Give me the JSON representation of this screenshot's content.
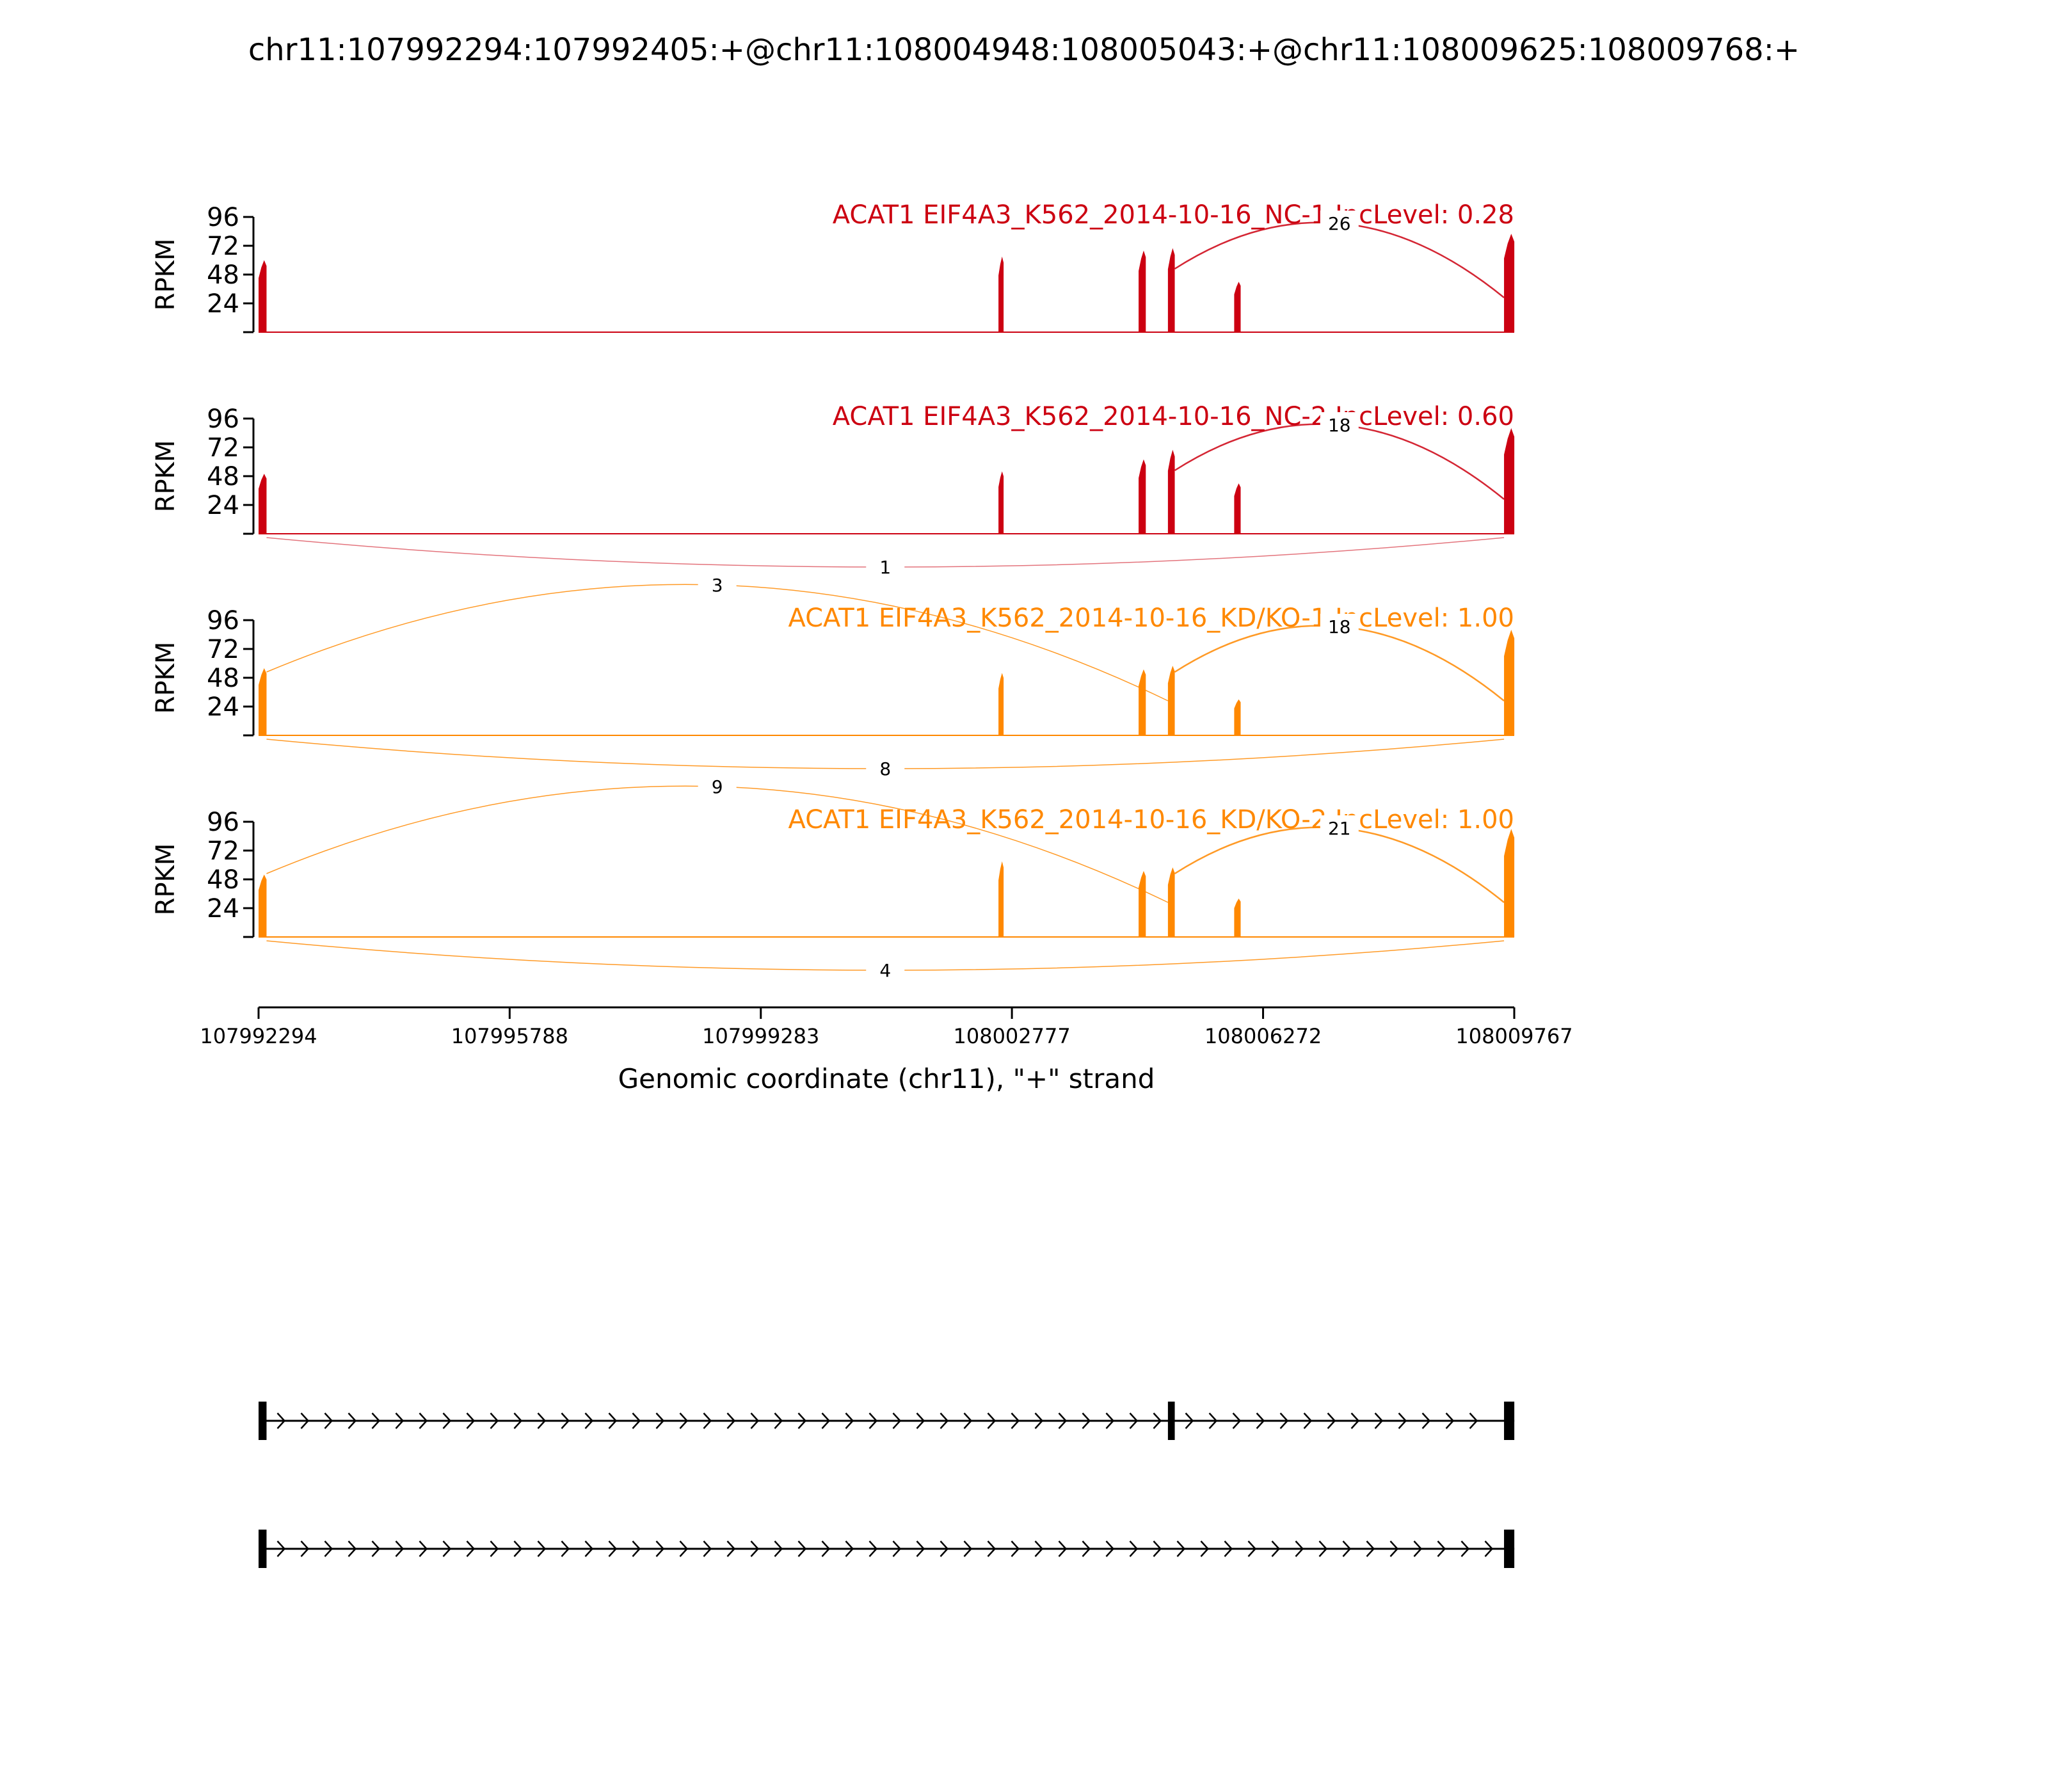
{
  "chart_data": {
    "type": "sashimi",
    "title": "chr11:107992294:107992405:+@chr11:108004948:108005043:+@chr11:108009625:108009768:+",
    "xlabel": "Genomic coordinate (chr11), \"+\" strand",
    "ylabel": "RPKM",
    "xlim": [
      107992294,
      108009767
    ],
    "x_ticks": [
      "107992294",
      "107995788",
      "107999283",
      "108002777",
      "108006272",
      "108009767"
    ],
    "ylim": [
      0,
      96
    ],
    "y_ticks": [
      "24",
      "48",
      "72",
      "96"
    ],
    "exons": [
      {
        "start": 107992294,
        "end": 107992405
      },
      {
        "start": 108004948,
        "end": 108005043
      },
      {
        "start": 108009625,
        "end": 108009768
      }
    ],
    "tracks": [
      {
        "name": "ACAT1 EIF4A3_K562_2014-10-16_NC-1 IncLevel: 0.28",
        "color": "#cc0011",
        "coverage": [
          {
            "start": 107992294,
            "end": 107992405,
            "peak": 60
          },
          {
            "start": 108002590,
            "end": 108002625,
            "peak": 63
          },
          {
            "start": 108004540,
            "end": 108004640,
            "peak": 68
          },
          {
            "start": 108004948,
            "end": 108005043,
            "peak": 70
          },
          {
            "start": 108005870,
            "end": 108005960,
            "peak": 42
          },
          {
            "start": 108009625,
            "end": 108009768,
            "peak": 82
          }
        ],
        "junctions": [
          {
            "start": 108005043,
            "end": 108009625,
            "count": "26",
            "side": "above"
          }
        ]
      },
      {
        "name": "ACAT1 EIF4A3_K562_2014-10-16_NC-2 IncLevel: 0.60",
        "color": "#cc0011",
        "coverage": [
          {
            "start": 107992294,
            "end": 107992405,
            "peak": 50
          },
          {
            "start": 108002590,
            "end": 108002625,
            "peak": 52
          },
          {
            "start": 108004540,
            "end": 108004640,
            "peak": 62
          },
          {
            "start": 108004948,
            "end": 108005043,
            "peak": 70
          },
          {
            "start": 108005870,
            "end": 108005960,
            "peak": 42
          },
          {
            "start": 108009625,
            "end": 108009768,
            "peak": 88
          }
        ],
        "junctions": [
          {
            "start": 108005043,
            "end": 108009625,
            "count": "18",
            "side": "above"
          },
          {
            "start": 107992405,
            "end": 108009625,
            "count": "1",
            "side": "below"
          }
        ]
      },
      {
        "name": "ACAT1 EIF4A3_K562_2014-10-16_KD/KO-1 IncLevel: 1.00",
        "color": "#ff8800",
        "coverage": [
          {
            "start": 107992294,
            "end": 107992405,
            "peak": 56
          },
          {
            "start": 108002590,
            "end": 108002625,
            "peak": 52
          },
          {
            "start": 108004540,
            "end": 108004640,
            "peak": 55
          },
          {
            "start": 108004948,
            "end": 108005043,
            "peak": 58
          },
          {
            "start": 108005870,
            "end": 108005960,
            "peak": 30
          },
          {
            "start": 108009625,
            "end": 108009768,
            "peak": 88
          }
        ],
        "junctions": [
          {
            "start": 107992405,
            "end": 108004948,
            "count": "3",
            "side": "above"
          },
          {
            "start": 108005043,
            "end": 108009625,
            "count": "18",
            "side": "above"
          },
          {
            "start": 107992405,
            "end": 108009625,
            "count": "8",
            "side": "below"
          }
        ]
      },
      {
        "name": "ACAT1 EIF4A3_K562_2014-10-16_KD/KO-2 IncLevel: 1.00",
        "color": "#ff8800",
        "coverage": [
          {
            "start": 107992294,
            "end": 107992405,
            "peak": 52
          },
          {
            "start": 108002590,
            "end": 108002625,
            "peak": 63
          },
          {
            "start": 108004540,
            "end": 108004640,
            "peak": 55
          },
          {
            "start": 108004948,
            "end": 108005043,
            "peak": 58
          },
          {
            "start": 108005870,
            "end": 108005960,
            "peak": 32
          },
          {
            "start": 108009625,
            "end": 108009768,
            "peak": 90
          }
        ],
        "junctions": [
          {
            "start": 107992405,
            "end": 108004948,
            "count": "9",
            "side": "above"
          },
          {
            "start": 108005043,
            "end": 108009625,
            "count": "21",
            "side": "above"
          },
          {
            "start": 107992405,
            "end": 108009625,
            "count": "4",
            "side": "below"
          }
        ]
      }
    ],
    "transcripts": [
      {
        "exons": [
          [
            107992294,
            107992405
          ],
          [
            108004948,
            108005043
          ],
          [
            108009625,
            108009768
          ]
        ]
      },
      {
        "exons": [
          [
            107992294,
            107992405
          ],
          [
            108009625,
            108009768
          ]
        ]
      }
    ]
  }
}
